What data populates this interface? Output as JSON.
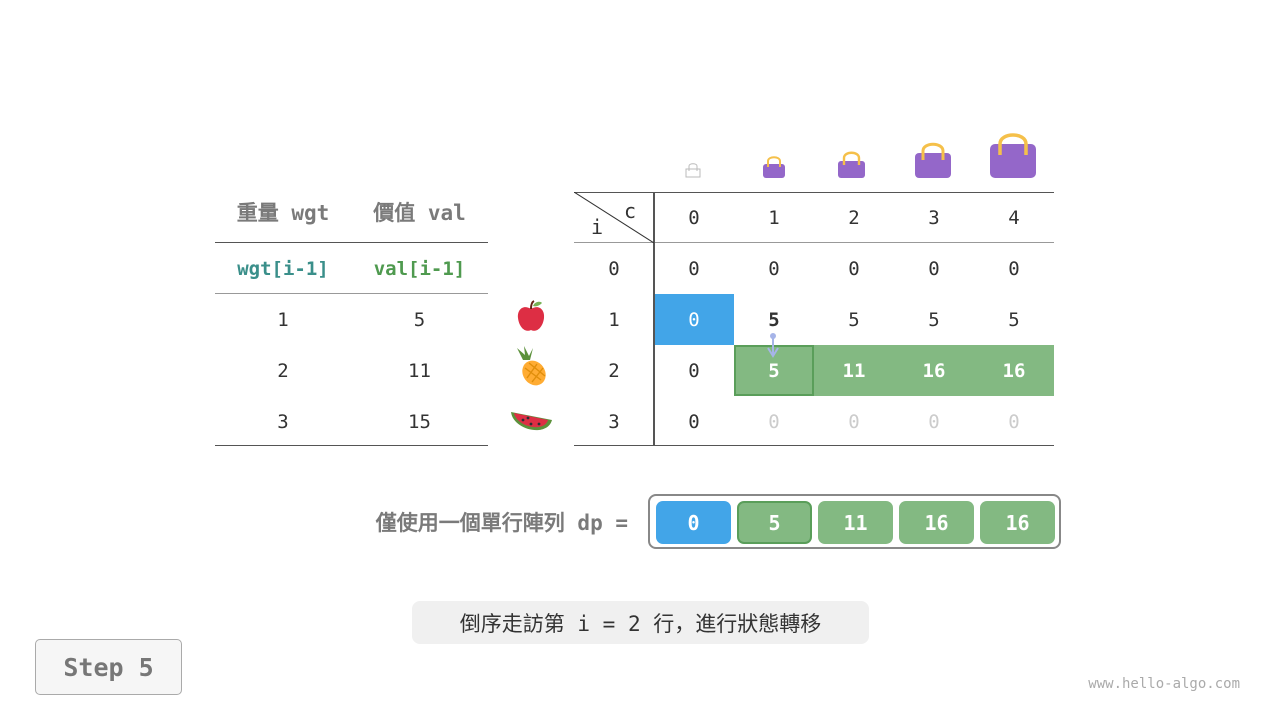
{
  "left_table": {
    "headers": [
      "重量 wgt",
      "價值 val"
    ],
    "subheaders": [
      "wgt[i-1]",
      "val[i-1]"
    ],
    "rows": [
      [
        "1",
        "5"
      ],
      [
        "2",
        "11"
      ],
      [
        "3",
        "15"
      ]
    ],
    "items": [
      "apple-icon",
      "pineapple-icon",
      "watermelon-icon"
    ]
  },
  "dp_table": {
    "corner_col": "c",
    "corner_row": "i",
    "capacities": [
      "0",
      "1",
      "2",
      "3",
      "4"
    ],
    "row_labels": [
      "0",
      "1",
      "2",
      "3"
    ],
    "rows": [
      [
        "0",
        "0",
        "0",
        "0",
        "0"
      ],
      [
        "0",
        "5",
        "5",
        "5",
        "5"
      ],
      [
        "0",
        "5",
        "11",
        "16",
        "16"
      ],
      [
        "0",
        "0",
        "0",
        "0",
        "0"
      ]
    ],
    "bag_icons": [
      "empty-bag-icon",
      "bag-icon",
      "bag-icon",
      "bag-icon",
      "bag-icon"
    ]
  },
  "dp_array": {
    "label": "僅使用一個單行陣列 dp =",
    "values": [
      "0",
      "5",
      "11",
      "16",
      "16"
    ]
  },
  "caption": "倒序走訪第 i = 2 行，進行狀態轉移",
  "step_label": "Step 5",
  "watermark": "www.hello-algo.com",
  "colors": {
    "blue": "#42a5e8",
    "green": "#83b982",
    "green_border": "#5a9e5a",
    "bag": "#9467c9",
    "handle": "#f5c04a"
  }
}
